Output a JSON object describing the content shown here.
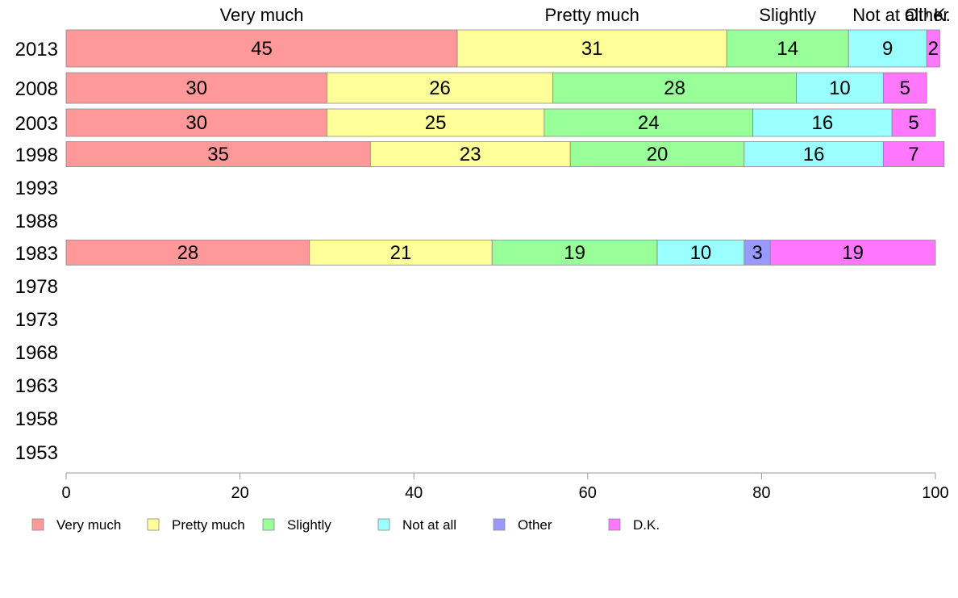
{
  "chart_data": {
    "type": "bar",
    "orientation": "horizontal",
    "stacked": true,
    "categories": [
      "2013",
      "2008",
      "2003",
      "1998",
      "1993",
      "1988",
      "1983",
      "1978",
      "1973",
      "1968",
      "1963",
      "1958",
      "1953"
    ],
    "series": [
      {
        "name": "Very much",
        "color": "#ff9999",
        "values": [
          45,
          30,
          30,
          35,
          null,
          null,
          28,
          null,
          null,
          null,
          null,
          null,
          null
        ],
        "labels": [
          "45",
          "30",
          "30",
          "35",
          "",
          "",
          "28",
          "",
          "",
          "",
          "",
          "",
          ""
        ]
      },
      {
        "name": "Pretty much",
        "color": "#ffff99",
        "values": [
          31,
          26,
          25,
          23,
          null,
          null,
          21,
          null,
          null,
          null,
          null,
          null,
          null
        ],
        "labels": [
          "31",
          "26",
          "25",
          "23",
          "",
          "",
          "21",
          "",
          "",
          "",
          "",
          "",
          ""
        ]
      },
      {
        "name": "Slightly",
        "color": "#99ff99",
        "values": [
          14,
          28,
          24,
          20,
          null,
          null,
          19,
          null,
          null,
          null,
          null,
          null,
          null
        ],
        "labels": [
          "14",
          "28",
          "24",
          "20",
          "",
          "",
          "19",
          "",
          "",
          "",
          "",
          "",
          ""
        ]
      },
      {
        "name": "Not at all",
        "color": "#99ffff",
        "values": [
          9,
          10,
          16,
          16,
          null,
          null,
          10,
          null,
          null,
          null,
          null,
          null,
          null
        ],
        "labels": [
          "9",
          "10",
          "16",
          "16",
          "",
          "",
          "10",
          "",
          "",
          "",
          "",
          "",
          ""
        ]
      },
      {
        "name": "Other",
        "color": "#9999ff",
        "values": [
          0,
          0,
          0,
          0,
          null,
          null,
          3,
          null,
          null,
          null,
          null,
          null,
          null
        ],
        "labels": [
          "",
          "",
          "",
          "",
          "",
          "",
          "3",
          "",
          "",
          "",
          "",
          "",
          ""
        ]
      },
      {
        "name": "D.K.",
        "color": "#ff77ff",
        "values": [
          1.5,
          5,
          5,
          7,
          null,
          null,
          19,
          null,
          null,
          null,
          null,
          null,
          null
        ],
        "labels": [
          "2",
          "5",
          "5",
          "7",
          "",
          "",
          "19",
          "",
          "",
          "",
          "",
          "",
          ""
        ]
      }
    ],
    "top_labels": [
      "Very much",
      "Pretty much",
      "Slightly",
      "Not at all",
      "Other",
      "D.K."
    ],
    "top_label_source": "2013",
    "xlim": [
      0,
      100
    ],
    "xticks": [
      0,
      20,
      40,
      60,
      80,
      100
    ],
    "xlabel": "",
    "ylabel": "",
    "title": "",
    "grid": false,
    "legend": {
      "position": "bottom-left"
    }
  }
}
